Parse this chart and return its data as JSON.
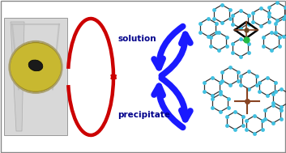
{
  "bg_color": "#ffffff",
  "border_color": "#888888",
  "solution_label": "solution",
  "precipitate_label": "precipitate",
  "label_color": "#00008B",
  "label_fontsize": 7.5,
  "label_fontweight": "bold",
  "red_arrow_color": "#cc0000",
  "blue_arrow_color": "#1a1aff",
  "figsize": [
    3.53,
    1.89
  ],
  "dpi": 100
}
